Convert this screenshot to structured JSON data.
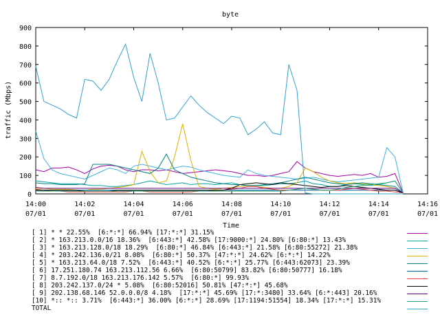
{
  "chart_data": {
    "type": "line",
    "title": "byte",
    "xlabel": "Time",
    "ylabel": "traffic (Mbps)",
    "ylim": [
      0,
      900
    ],
    "yticks": [
      0,
      100,
      200,
      300,
      400,
      500,
      600,
      700,
      800,
      900
    ],
    "xlim": [
      "14:00",
      "14:16"
    ],
    "xticks": [
      {
        "time": "14:00",
        "date": "07/01"
      },
      {
        "time": "14:02",
        "date": "07/01"
      },
      {
        "time": "14:04",
        "date": "07/01"
      },
      {
        "time": "14:06",
        "date": "07/01"
      },
      {
        "time": "14:08",
        "date": "07/01"
      },
      {
        "time": "14:10",
        "date": "07/01"
      },
      {
        "time": "14:12",
        "date": "07/01"
      },
      {
        "time": "14:14",
        "date": "07/01"
      },
      {
        "time": "14:16",
        "date": "07/01"
      }
    ],
    "grid": false,
    "legend_position": "bottom",
    "x": [
      "14:00:00",
      "14:00:20",
      "14:00:40",
      "14:01:00",
      "14:01:20",
      "14:01:40",
      "14:02:00",
      "14:02:20",
      "14:02:40",
      "14:03:00",
      "14:03:20",
      "14:03:40",
      "14:04:00",
      "14:04:20",
      "14:04:40",
      "14:05:00",
      "14:05:20",
      "14:05:40",
      "14:06:00",
      "14:06:20",
      "14:06:40",
      "14:07:00",
      "14:07:20",
      "14:07:40",
      "14:08:00",
      "14:08:20",
      "14:08:40",
      "14:09:00",
      "14:09:20",
      "14:09:40",
      "14:10:00",
      "14:10:20",
      "14:10:40",
      "14:11:00",
      "14:11:20",
      "14:11:40",
      "14:12:00",
      "14:12:20",
      "14:12:40",
      "14:13:00",
      "14:13:20",
      "14:13:40",
      "14:14:00",
      "14:14:20",
      "14:14:40",
      "14:15:00"
    ],
    "series": [
      {
        "name": "[ 1] * * 22.55%  [6:*:*] 66.94% [17:*:*] 31.15%",
        "color": "#a000a0",
        "values": [
          130,
          120,
          140,
          140,
          145,
          130,
          110,
          135,
          150,
          155,
          150,
          130,
          120,
          130,
          130,
          125,
          130,
          120,
          110,
          115,
          120,
          125,
          130,
          125,
          120,
          110,
          100,
          100,
          95,
          100,
          110,
          120,
          175,
          140,
          120,
          110,
          100,
          95,
          100,
          105,
          100,
          110,
          90,
          95,
          110,
          5
        ]
      },
      {
        "name": "[ 2] * 163.213.0.0/16 18.36%  [6:443:*] 42.58% [17:9000:*] 24.80% [6:80:*] 13.43%",
        "color": "#00a0a0",
        "values": [
          70,
          65,
          60,
          55,
          55,
          55,
          50,
          45,
          45,
          40,
          40,
          45,
          50,
          60,
          70,
          60,
          50,
          55,
          60,
          50,
          55,
          55,
          50,
          55,
          60,
          50,
          45,
          45,
          45,
          50,
          55,
          55,
          60,
          70,
          55,
          50,
          40,
          40,
          50,
          55,
          50,
          45,
          50,
          60,
          70,
          5
        ]
      },
      {
        "name": "[ 3] * 163.213.128.0/18 18.29%  [6:80:*] 46.84% [6:443:*] 21.58% [6:80:55272] 21.38%",
        "color": "#40b0e0",
        "values": [
          340,
          190,
          130,
          110,
          100,
          90,
          80,
          100,
          120,
          140,
          130,
          110,
          150,
          160,
          150,
          140,
          130,
          140,
          150,
          145,
          130,
          120,
          110,
          100,
          95,
          90,
          130,
          110,
          100,
          95,
          90,
          85,
          80,
          85,
          90,
          80,
          70,
          65,
          70,
          75,
          80,
          85,
          90,
          250,
          200,
          5
        ]
      },
      {
        "name": "[ 4] * 203.242.136.0/21 8.08%  [6:80:*] 50.37% [47:*:*] 24.62% [6:*:*] 14.22%",
        "color": "#e0b000",
        "values": [
          30,
          30,
          25,
          25,
          25,
          20,
          20,
          25,
          25,
          30,
          35,
          40,
          50,
          230,
          120,
          60,
          70,
          200,
          380,
          180,
          40,
          30,
          25,
          30,
          35,
          40,
          45,
          40,
          35,
          30,
          30,
          40,
          60,
          140,
          120,
          90,
          70,
          60,
          55,
          60,
          55,
          50,
          45,
          40,
          30,
          5
        ]
      },
      {
        "name": "[ 5] * 163.213.64.0/18 7.52%  [6:443:*] 40.52% [6:*:*] 25.77% [6:443:62073] 23.39%",
        "color": "#008080",
        "values": [
          60,
          55,
          55,
          50,
          50,
          50,
          55,
          160,
          160,
          160,
          150,
          140,
          130,
          120,
          110,
          140,
          215,
          130,
          110,
          90,
          80,
          70,
          60,
          55,
          50,
          50,
          45,
          45,
          50,
          55,
          60,
          70,
          80,
          90,
          80,
          70,
          60,
          55,
          50,
          55,
          60,
          55,
          50,
          45,
          40,
          5
        ]
      },
      {
        "name": "[ 6] 17.251.180.74 163.213.112.56 6.66%  [6:80:50799] 83.82% [6:80:50777] 16.18%",
        "color": "#0060a0",
        "values": [
          20,
          20,
          20,
          20,
          20,
          20,
          20,
          20,
          20,
          20,
          20,
          20,
          20,
          20,
          20,
          20,
          20,
          20,
          20,
          20,
          20,
          20,
          20,
          20,
          20,
          20,
          20,
          20,
          20,
          20,
          20,
          20,
          20,
          20,
          20,
          20,
          20,
          20,
          20,
          20,
          20,
          20,
          20,
          20,
          20,
          5
        ]
      },
      {
        "name": "[ 7] 8.7.192.0/18 163.213.176.142 5.57%  [6:80:*] 99.93%",
        "color": "#e04040",
        "values": [
          25,
          20,
          15,
          15,
          10,
          10,
          10,
          10,
          10,
          10,
          10,
          10,
          15,
          15,
          10,
          10,
          10,
          10,
          10,
          10,
          15,
          15,
          20,
          20,
          25,
          30,
          40,
          40,
          30,
          25,
          20,
          20,
          25,
          30,
          25,
          20,
          20,
          20,
          25,
          30,
          25,
          20,
          15,
          15,
          10,
          5
        ]
      },
      {
        "name": "[ 8] 203.242.137.0/24 * 5.08%  [6:80:52016] 50.81% [47:*:*] 45.68%",
        "color": "#000000",
        "values": [
          20,
          20,
          20,
          20,
          20,
          20,
          15,
          15,
          15,
          15,
          20,
          20,
          20,
          20,
          20,
          20,
          20,
          20,
          20,
          20,
          20,
          20,
          20,
          20,
          30,
          50,
          55,
          60,
          55,
          50,
          60,
          55,
          50,
          45,
          40,
          35,
          40,
          40,
          45,
          40,
          35,
          30,
          25,
          20,
          20,
          5
        ]
      },
      {
        "name": "[ 9] 202.138.68.146 52.0.0.0/8 4.18%  [17:*:*] 45.69% [17:*:3480] 33.64% [6:*:443] 20.16%",
        "color": "#600080",
        "values": [
          35,
          30,
          30,
          30,
          30,
          30,
          30,
          30,
          30,
          30,
          30,
          30,
          30,
          30,
          30,
          30,
          30,
          30,
          30,
          30,
          30,
          30,
          30,
          30,
          30,
          30,
          30,
          30,
          30,
          30,
          30,
          30,
          30,
          30,
          30,
          30,
          30,
          30,
          30,
          30,
          30,
          30,
          30,
          30,
          30,
          5
        ]
      },
      {
        "name": "[10] *:: *:: 3.71%  [6:443:*] 36.00% [6:*:*] 28.69% [17:1194:51554] 18.34% [17:*:*] 15.31%",
        "color": "#20a070",
        "values": [
          15,
          15,
          15,
          15,
          15,
          15,
          15,
          15,
          15,
          15,
          15,
          15,
          15,
          15,
          15,
          15,
          15,
          15,
          15,
          15,
          15,
          15,
          15,
          15,
          15,
          15,
          15,
          15,
          15,
          15,
          15,
          20,
          25,
          30,
          25,
          20,
          20,
          25,
          35,
          40,
          45,
          50,
          55,
          60,
          70,
          5
        ]
      },
      {
        "name": "TOTAL",
        "color": "#30a0d0",
        "values": [
          690,
          500,
          480,
          460,
          430,
          410,
          620,
          610,
          560,
          620,
          720,
          810,
          630,
          500,
          760,
          600,
          400,
          410,
          470,
          530,
          480,
          440,
          410,
          380,
          420,
          410,
          320,
          350,
          390,
          330,
          320,
          700,
          560,
          5,
          0,
          0,
          0,
          0,
          0,
          0,
          0,
          0,
          0,
          0,
          0,
          0
        ]
      }
    ]
  }
}
